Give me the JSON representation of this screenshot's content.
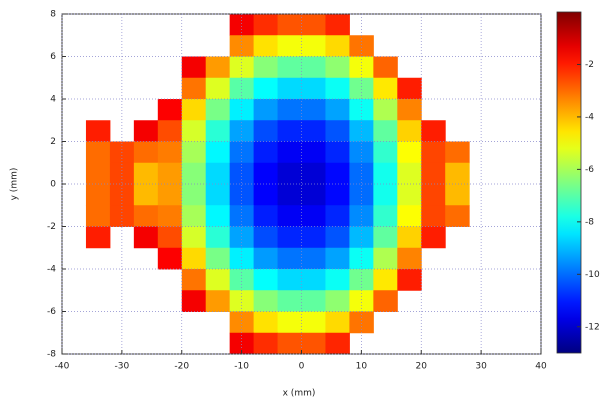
{
  "chart_data": {
    "type": "heatmap",
    "xlabel": "x (mm)",
    "ylabel": "y (mm)",
    "x": [
      -38,
      -34,
      -30,
      -26,
      -22,
      -18,
      -14,
      -10,
      -6,
      -2,
      2,
      6,
      10,
      14,
      18,
      22,
      26,
      30,
      34,
      38
    ],
    "y": [
      7.5,
      6.5,
      5.5,
      4.5,
      3.5,
      2.5,
      1.5,
      0.5,
      -0.5,
      -1.5,
      -2.5,
      -3.5,
      -4.5,
      -5.5,
      -6.5,
      -7.5
    ],
    "values": [
      [
        null,
        null,
        null,
        null,
        null,
        null,
        null,
        -1.5,
        -2.2,
        -2.7,
        -2.7,
        -2.1,
        null,
        null,
        null,
        null,
        null,
        null,
        null,
        null
      ],
      [
        null,
        null,
        null,
        null,
        null,
        null,
        null,
        -3.4,
        -4.5,
        -5,
        -5,
        -4.4,
        -3.1,
        null,
        null,
        null,
        null,
        null,
        null,
        null
      ],
      [
        null,
        null,
        null,
        null,
        null,
        -1.5,
        -3.6,
        -5.3,
        -6.4,
        -6.9,
        -6.9,
        -6.3,
        -5,
        -2.9,
        null,
        null,
        null,
        null,
        null,
        null
      ],
      [
        null,
        null,
        null,
        null,
        null,
        -3.1,
        -5.3,
        -7,
        -8.1,
        -8.6,
        -8.6,
        -8,
        -6.7,
        -4.6,
        -2,
        null,
        null,
        null,
        null,
        null
      ],
      [
        null,
        null,
        null,
        null,
        -1.6,
        -4.4,
        -6.6,
        -8.3,
        -9.4,
        -9.9,
        -9.9,
        -9.3,
        -8,
        -5.9,
        -3.3,
        null,
        null,
        null,
        null,
        null
      ],
      [
        null,
        -2,
        null,
        -1.5,
        -2.6,
        -5.4,
        -7.6,
        -9.3,
        -10.4,
        -10.9,
        -10.9,
        -10.3,
        -9,
        -6.9,
        -4.3,
        -2,
        null,
        null,
        null,
        null
      ],
      [
        null,
        -3,
        -2.5,
        -3,
        -3.2,
        -6,
        -8.2,
        -9.9,
        -11,
        -11.5,
        -11.5,
        -10.9,
        -9.6,
        -7.5,
        -4.9,
        -2.5,
        -3,
        null,
        null,
        null
      ],
      [
        null,
        -3,
        -2.5,
        -4,
        -3.6,
        -6.4,
        -8.6,
        -10.3,
        -11.4,
        -11.9,
        -11.9,
        -11.3,
        -10,
        -7.9,
        -5.3,
        -2.5,
        -4,
        null,
        null,
        null
      ],
      [
        null,
        -3,
        -2.5,
        -4,
        -3.6,
        -6.4,
        -8.6,
        -10.3,
        -11.4,
        -11.9,
        -11.9,
        -11.3,
        -10,
        -7.9,
        -5.3,
        -2.5,
        -4,
        null,
        null,
        null
      ],
      [
        null,
        -3,
        -2.5,
        -3,
        -3.2,
        -6,
        -8.2,
        -9.9,
        -11,
        -11.5,
        -11.5,
        -10.9,
        -9.6,
        -7.5,
        -4.9,
        -2.5,
        -3,
        null,
        null,
        null
      ],
      [
        null,
        -2,
        null,
        -1.5,
        -2.6,
        -5.4,
        -7.6,
        -9.3,
        -10.4,
        -10.9,
        -10.9,
        -10.3,
        -9,
        -6.9,
        -4.3,
        -2,
        null,
        null,
        null,
        null
      ],
      [
        null,
        null,
        null,
        null,
        -1.6,
        -4.4,
        -6.6,
        -8.3,
        -9.4,
        -9.9,
        -9.9,
        -9.3,
        -8,
        -5.9,
        -3.3,
        null,
        null,
        null,
        null,
        null
      ],
      [
        null,
        null,
        null,
        null,
        null,
        -3.1,
        -5.3,
        -7,
        -8.1,
        -8.6,
        -8.6,
        -8,
        -6.7,
        -4.6,
        -2,
        null,
        null,
        null,
        null,
        null
      ],
      [
        null,
        null,
        null,
        null,
        null,
        -1.5,
        -3.6,
        -5.3,
        -6.4,
        -6.9,
        -6.9,
        -6.3,
        -5,
        -2.9,
        null,
        null,
        null,
        null,
        null,
        null
      ],
      [
        null,
        null,
        null,
        null,
        null,
        null,
        null,
        -3.4,
        -4.5,
        -5,
        -5,
        -4.4,
        -3.1,
        null,
        null,
        null,
        null,
        null,
        null,
        null
      ],
      [
        null,
        null,
        null,
        null,
        null,
        null,
        null,
        -1.5,
        -2.2,
        -2.7,
        -2.7,
        -2.1,
        null,
        null,
        null,
        null,
        null,
        null,
        null,
        null
      ]
    ],
    "xlim": [
      -40,
      40
    ],
    "ylim": [
      -8,
      8
    ],
    "xticks": [
      -40,
      -30,
      -20,
      -10,
      0,
      10,
      20,
      30,
      40
    ],
    "yticks": [
      -8,
      -6,
      -4,
      -2,
      0,
      2,
      4,
      6,
      8
    ],
    "zlim": [
      -13,
      0
    ],
    "zticks": [
      -2,
      -4,
      -6,
      -8,
      -10,
      -12
    ],
    "colormap": "jet",
    "grid": true
  }
}
